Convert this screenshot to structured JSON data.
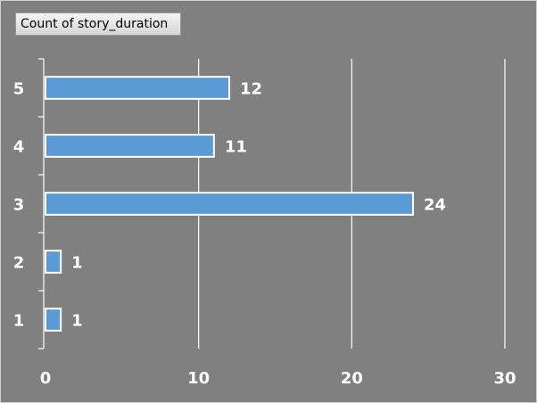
{
  "chart_data": {
    "type": "bar",
    "orientation": "horizontal",
    "field_button": "Count of story_duration",
    "categories": [
      "1",
      "2",
      "3",
      "4",
      "5"
    ],
    "values": [
      1,
      1,
      24,
      11,
      12
    ],
    "xlim": [
      0,
      30
    ],
    "xticks": [
      "0",
      "10",
      "20",
      "30"
    ],
    "grid": "vertical",
    "data_labels": true,
    "colors": {
      "background": "#808080",
      "bar_fill": "#5b9bd5",
      "bar_stroke": "#ffffff",
      "grid": "#ffffff",
      "text": "#ffffff"
    }
  }
}
